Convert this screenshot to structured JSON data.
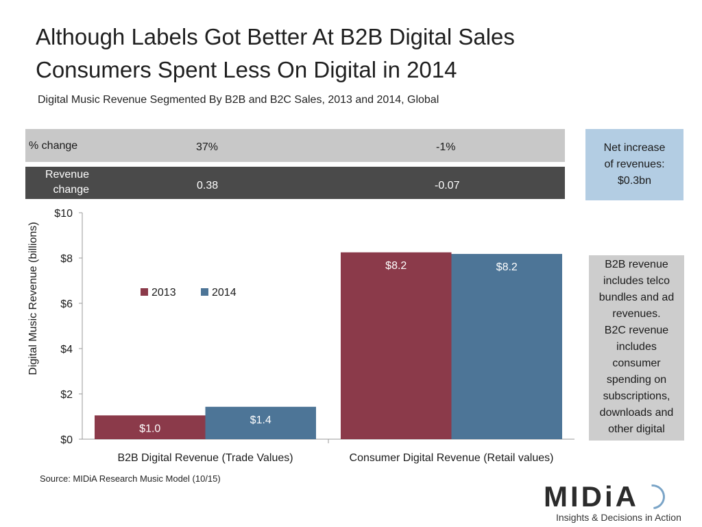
{
  "title_line1": "Although Labels Got Better At B2B Digital Sales",
  "title_line2": "Consumers Spent Less On Digital in 2014",
  "subtitle": "Digital Music Revenue Segmented By B2B and B2C Sales, 2013 and 2014, Global",
  "pct_row": {
    "label": "% change",
    "b2b": "37%",
    "b2c": "-1%"
  },
  "rev_row": {
    "label_line1": "Revenue",
    "label_line2": "change",
    "b2b": "0.38",
    "b2c": "-0.07"
  },
  "net_box": {
    "line1": "Net increase",
    "line2": "of revenues:",
    "line3": "$0.3bn"
  },
  "note_box": {
    "lines": [
      "B2B revenue",
      "includes telco",
      "bundles and ad",
      "revenues.",
      "B2C revenue",
      "includes",
      "consumer",
      "spending on",
      "subscriptions,",
      "downloads and",
      "other digital"
    ]
  },
  "source": "Source: MIDiA Research Music Model (10/15)",
  "logo": {
    "name": "MIDiA",
    "tagline": "Insights & Decisions in Action"
  },
  "colors": {
    "series_2013": "#8b3a4a",
    "series_2014": "#4d7597",
    "axis": "#999999"
  },
  "chart_data": {
    "type": "bar",
    "ylabel": "Digital Music Revenue (billions)",
    "ylim": [
      0,
      10
    ],
    "yticks": [
      "$0",
      "$2",
      "$4",
      "$6",
      "$8",
      "$10"
    ],
    "categories": [
      "B2B Digital Revenue (Trade Values)",
      "Consumer Digital Revenue (Retail values)"
    ],
    "series": [
      {
        "name": "2013",
        "values": [
          1.05,
          8.25
        ],
        "labels": [
          "$1.0",
          "$8.2"
        ]
      },
      {
        "name": "2014",
        "values": [
          1.43,
          8.18
        ],
        "labels": [
          "$1.4",
          "$8.2"
        ]
      }
    ],
    "legend": "inside-left",
    "grid": false
  }
}
